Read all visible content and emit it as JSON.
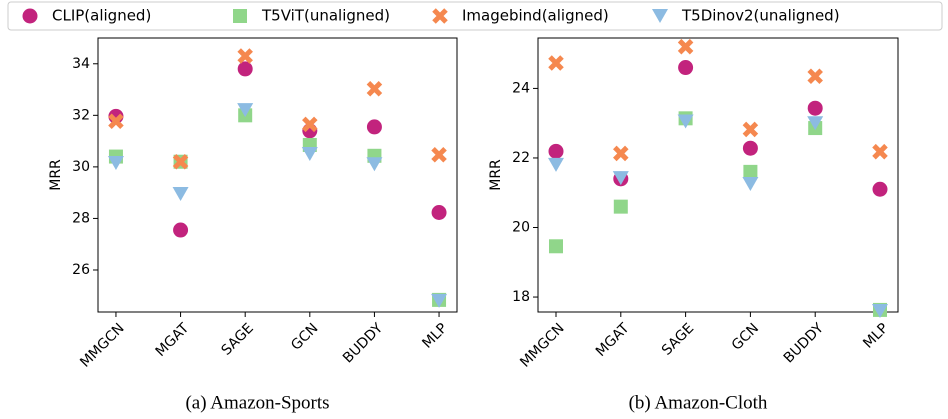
{
  "chart_data": [
    {
      "type": "scatter",
      "title": "(a) Amazon-Sports",
      "y_label": "MRR",
      "categories": [
        "MMGCN",
        "MGAT",
        "SAGE",
        "GCN",
        "BUDDY",
        "MLP"
      ],
      "ylim": [
        24.37,
        35.0
      ],
      "yticks": [
        26,
        28,
        30,
        32,
        34
      ],
      "series": [
        {
          "name": "CLIP(aligned)",
          "color": "#c2237d",
          "marker": "circle",
          "values": [
            31.96,
            27.55,
            33.8,
            31.4,
            31.55,
            28.23
          ]
        },
        {
          "name": "T5ViT(unaligned)",
          "color": "#90d68a",
          "marker": "square",
          "values": [
            30.4,
            30.2,
            32.0,
            30.85,
            30.43,
            24.84
          ]
        },
        {
          "name": "Imagebind(aligned)",
          "color": "#f5884f",
          "marker": "x",
          "values": [
            31.77,
            30.2,
            34.3,
            31.65,
            33.03,
            30.47
          ]
        },
        {
          "name": "T5Dinov2(unaligned)",
          "color": "#8cbbe2",
          "marker": "triangle-down",
          "values": [
            30.15,
            28.95,
            32.2,
            30.5,
            30.1,
            24.8
          ]
        }
      ]
    },
    {
      "type": "scatter",
      "title": "(b) Amazon-Cloth",
      "y_label": "MRR",
      "categories": [
        "MMGCN",
        "MGAT",
        "SAGE",
        "GCN",
        "BUDDY",
        "MLP"
      ],
      "ylim": [
        17.57,
        25.45
      ],
      "yticks": [
        18,
        20,
        22,
        24
      ],
      "series": [
        {
          "name": "CLIP(aligned)",
          "color": "#c2237d",
          "marker": "circle",
          "values": [
            22.19,
            21.4,
            24.6,
            22.28,
            23.43,
            21.1
          ]
        },
        {
          "name": "T5ViT(unaligned)",
          "color": "#90d68a",
          "marker": "square",
          "values": [
            19.46,
            20.6,
            23.14,
            21.6,
            22.86,
            17.63
          ]
        },
        {
          "name": "Imagebind(aligned)",
          "color": "#f5884f",
          "marker": "x",
          "values": [
            24.73,
            22.13,
            25.2,
            22.82,
            24.35,
            22.18
          ]
        },
        {
          "name": "T5Dinov2(unaligned)",
          "color": "#8cbbe2",
          "marker": "triangle-down",
          "values": [
            21.8,
            21.42,
            23.05,
            21.25,
            23.0,
            17.6
          ]
        }
      ]
    }
  ]
}
